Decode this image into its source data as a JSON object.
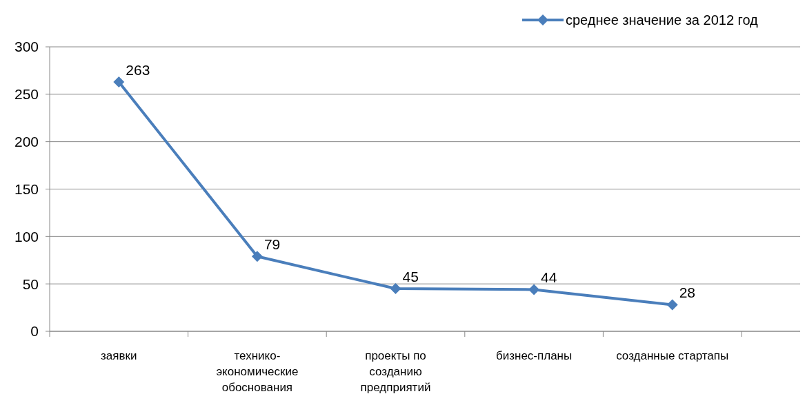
{
  "chart_data": {
    "type": "line",
    "categories": [
      "заявки",
      "технико-экономические обоснования",
      "проекты по созданию предприятий",
      "бизнес-планы",
      "созданные стартапы"
    ],
    "series": [
      {
        "name": "среднее значение за 2012 год",
        "color": "#4a7ebb",
        "values": [
          263,
          79,
          45,
          44,
          28
        ]
      }
    ],
    "ylim": [
      0,
      300
    ],
    "yticks": [
      0,
      50,
      100,
      150,
      200,
      250,
      300
    ],
    "grid": "y",
    "legend": "top right",
    "marker": "diamond",
    "data_labels": true
  }
}
